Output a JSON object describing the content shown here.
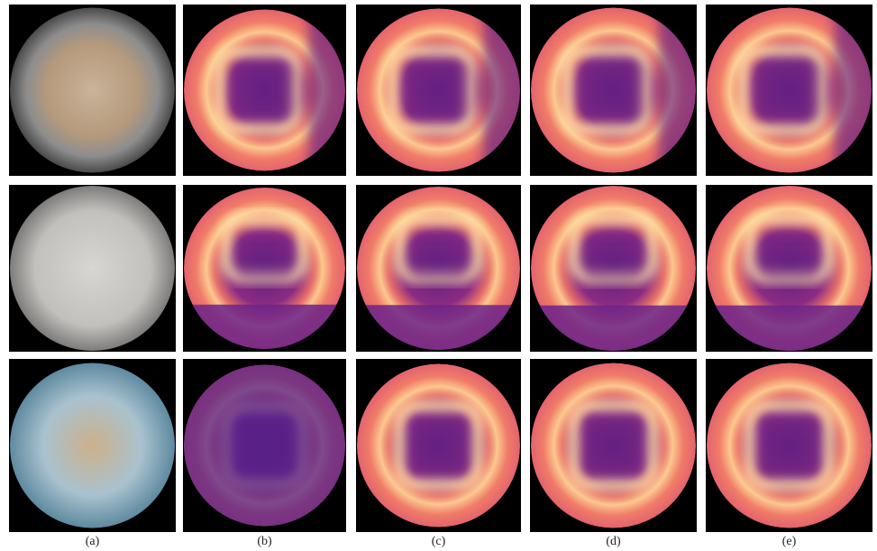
{
  "labels": [
    "(a)",
    "(b)",
    "(c)",
    "(d)",
    "(e)"
  ]
}
